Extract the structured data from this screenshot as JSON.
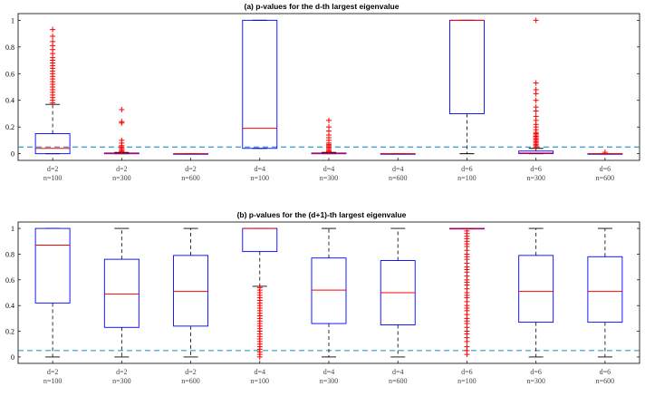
{
  "chart_data": [
    {
      "type": "box",
      "title": "(a) p-values for the d-th largest eigenvalue",
      "xlabel": "",
      "ylabel": "",
      "ylim": [
        -0.05,
        1.05
      ],
      "yticks": [
        0,
        0.2,
        0.4,
        0.6,
        0.8,
        1
      ],
      "grid": false,
      "threshold": 0.05,
      "categories": [
        {
          "d": "d=2",
          "n": "n=100"
        },
        {
          "d": "d=2",
          "n": "n=300"
        },
        {
          "d": "d=2",
          "n": "n=600"
        },
        {
          "d": "d=4",
          "n": "n=100"
        },
        {
          "d": "d=4",
          "n": "n=300"
        },
        {
          "d": "d=4",
          "n": "n=600"
        },
        {
          "d": "d=6",
          "n": "n=100"
        },
        {
          "d": "d=6",
          "n": "n=300"
        },
        {
          "d": "d=6",
          "n": "n=600"
        }
      ],
      "boxes": [
        {
          "whisker_low": 0,
          "q1": 0,
          "median": 0.04,
          "q3": 0.15,
          "whisker_high": 0.37,
          "outliers": [
            0.38,
            0.4,
            0.42,
            0.44,
            0.46,
            0.48,
            0.5,
            0.52,
            0.54,
            0.56,
            0.58,
            0.6,
            0.62,
            0.64,
            0.66,
            0.68,
            0.7,
            0.72,
            0.75,
            0.78,
            0.81,
            0.84,
            0.88,
            0.93
          ]
        },
        {
          "whisker_low": 0,
          "q1": 0,
          "median": 0,
          "q3": 0.005,
          "whisker_high": 0.01,
          "outliers": [
            0.015,
            0.02,
            0.03,
            0.04,
            0.05,
            0.06,
            0.08,
            0.1,
            0.23,
            0.24,
            0.33
          ]
        },
        {
          "whisker_low": 0,
          "q1": 0,
          "median": 0,
          "q3": 0,
          "whisker_high": 0,
          "outliers": []
        },
        {
          "whisker_low": 0.04,
          "q1": 0.04,
          "median": 0.19,
          "q3": 1,
          "whisker_high": 1,
          "outliers": []
        },
        {
          "whisker_low": 0,
          "q1": 0,
          "median": 0,
          "q3": 0.005,
          "whisker_high": 0.01,
          "outliers": [
            0.015,
            0.02,
            0.03,
            0.04,
            0.05,
            0.06,
            0.07,
            0.08,
            0.1,
            0.12,
            0.14,
            0.17,
            0.2,
            0.25
          ]
        },
        {
          "whisker_low": 0,
          "q1": 0,
          "median": 0,
          "q3": 0,
          "whisker_high": 0,
          "outliers": []
        },
        {
          "whisker_low": 0,
          "q1": 0.3,
          "median": 1,
          "q3": 1,
          "whisker_high": 1,
          "outliers": []
        },
        {
          "whisker_low": 0,
          "q1": 0.001,
          "median": 0.005,
          "q3": 0.02,
          "whisker_high": 0.04,
          "outliers": [
            0.05,
            0.06,
            0.07,
            0.08,
            0.09,
            0.1,
            0.11,
            0.12,
            0.13,
            0.14,
            0.15,
            0.16,
            0.18,
            0.2,
            0.22,
            0.25,
            0.28,
            0.32,
            0.35,
            0.4,
            0.45,
            0.48,
            0.53,
            1.0
          ]
        },
        {
          "whisker_low": 0,
          "q1": 0,
          "median": 0,
          "q3": 0,
          "whisker_high": 0,
          "outliers": [
            0.01
          ]
        }
      ]
    },
    {
      "type": "box",
      "title": "(b) p-values for the (d+1)-th largest eigenvalue",
      "xlabel": "",
      "ylabel": "",
      "ylim": [
        -0.05,
        1.05
      ],
      "yticks": [
        0,
        0.2,
        0.4,
        0.6,
        0.8,
        1
      ],
      "grid": false,
      "threshold": 0.05,
      "categories": [
        {
          "d": "d=2",
          "n": "n=100"
        },
        {
          "d": "d=2",
          "n": "n=300"
        },
        {
          "d": "d=2",
          "n": "n=600"
        },
        {
          "d": "d=4",
          "n": "n=100"
        },
        {
          "d": "d=4",
          "n": "n=300"
        },
        {
          "d": "d=4",
          "n": "n=600"
        },
        {
          "d": "d=6",
          "n": "n=100"
        },
        {
          "d": "d=6",
          "n": "n=300"
        },
        {
          "d": "d=6",
          "n": "n=600"
        }
      ],
      "boxes": [
        {
          "whisker_low": 0,
          "q1": 0.42,
          "median": 0.87,
          "q3": 1,
          "whisker_high": 1,
          "outliers": []
        },
        {
          "whisker_low": 0,
          "q1": 0.23,
          "median": 0.49,
          "q3": 0.76,
          "whisker_high": 1,
          "outliers": []
        },
        {
          "whisker_low": 0,
          "q1": 0.24,
          "median": 0.51,
          "q3": 0.79,
          "whisker_high": 1,
          "outliers": []
        },
        {
          "whisker_low": 0.55,
          "q1": 0.82,
          "median": 1,
          "q3": 1,
          "whisker_high": 1,
          "outliers": [
            0.0,
            0.02,
            0.04,
            0.06,
            0.08,
            0.1,
            0.12,
            0.14,
            0.16,
            0.18,
            0.2,
            0.22,
            0.24,
            0.26,
            0.28,
            0.3,
            0.32,
            0.34,
            0.36,
            0.38,
            0.4,
            0.42,
            0.44,
            0.46,
            0.48,
            0.5,
            0.52,
            0.54
          ]
        },
        {
          "whisker_low": 0,
          "q1": 0.26,
          "median": 0.52,
          "q3": 0.77,
          "whisker_high": 1,
          "outliers": []
        },
        {
          "whisker_low": 0,
          "q1": 0.25,
          "median": 0.5,
          "q3": 0.75,
          "whisker_high": 1,
          "outliers": []
        },
        {
          "whisker_low": 1,
          "q1": 1,
          "median": 1,
          "q3": 1,
          "whisker_high": 1,
          "outliers": [
            0.02,
            0.05,
            0.08,
            0.12,
            0.15,
            0.18,
            0.2,
            0.23,
            0.26,
            0.28,
            0.3,
            0.33,
            0.36,
            0.38,
            0.4,
            0.43,
            0.46,
            0.48,
            0.5,
            0.53,
            0.56,
            0.58,
            0.6,
            0.63,
            0.66,
            0.68,
            0.7,
            0.73,
            0.76,
            0.78,
            0.8,
            0.83,
            0.86,
            0.88,
            0.9,
            0.92,
            0.94,
            0.96,
            0.98
          ]
        },
        {
          "whisker_low": 0,
          "q1": 0.27,
          "median": 0.51,
          "q3": 0.79,
          "whisker_high": 1,
          "outliers": []
        },
        {
          "whisker_low": 0,
          "q1": 0.27,
          "median": 0.51,
          "q3": 0.78,
          "whisker_high": 1,
          "outliers": []
        }
      ]
    }
  ],
  "colors": {
    "box": "#0000ff",
    "median": "#ff0000",
    "outlier": "#ff0000",
    "whisker": "#000000",
    "threshold": "#3399cc"
  }
}
